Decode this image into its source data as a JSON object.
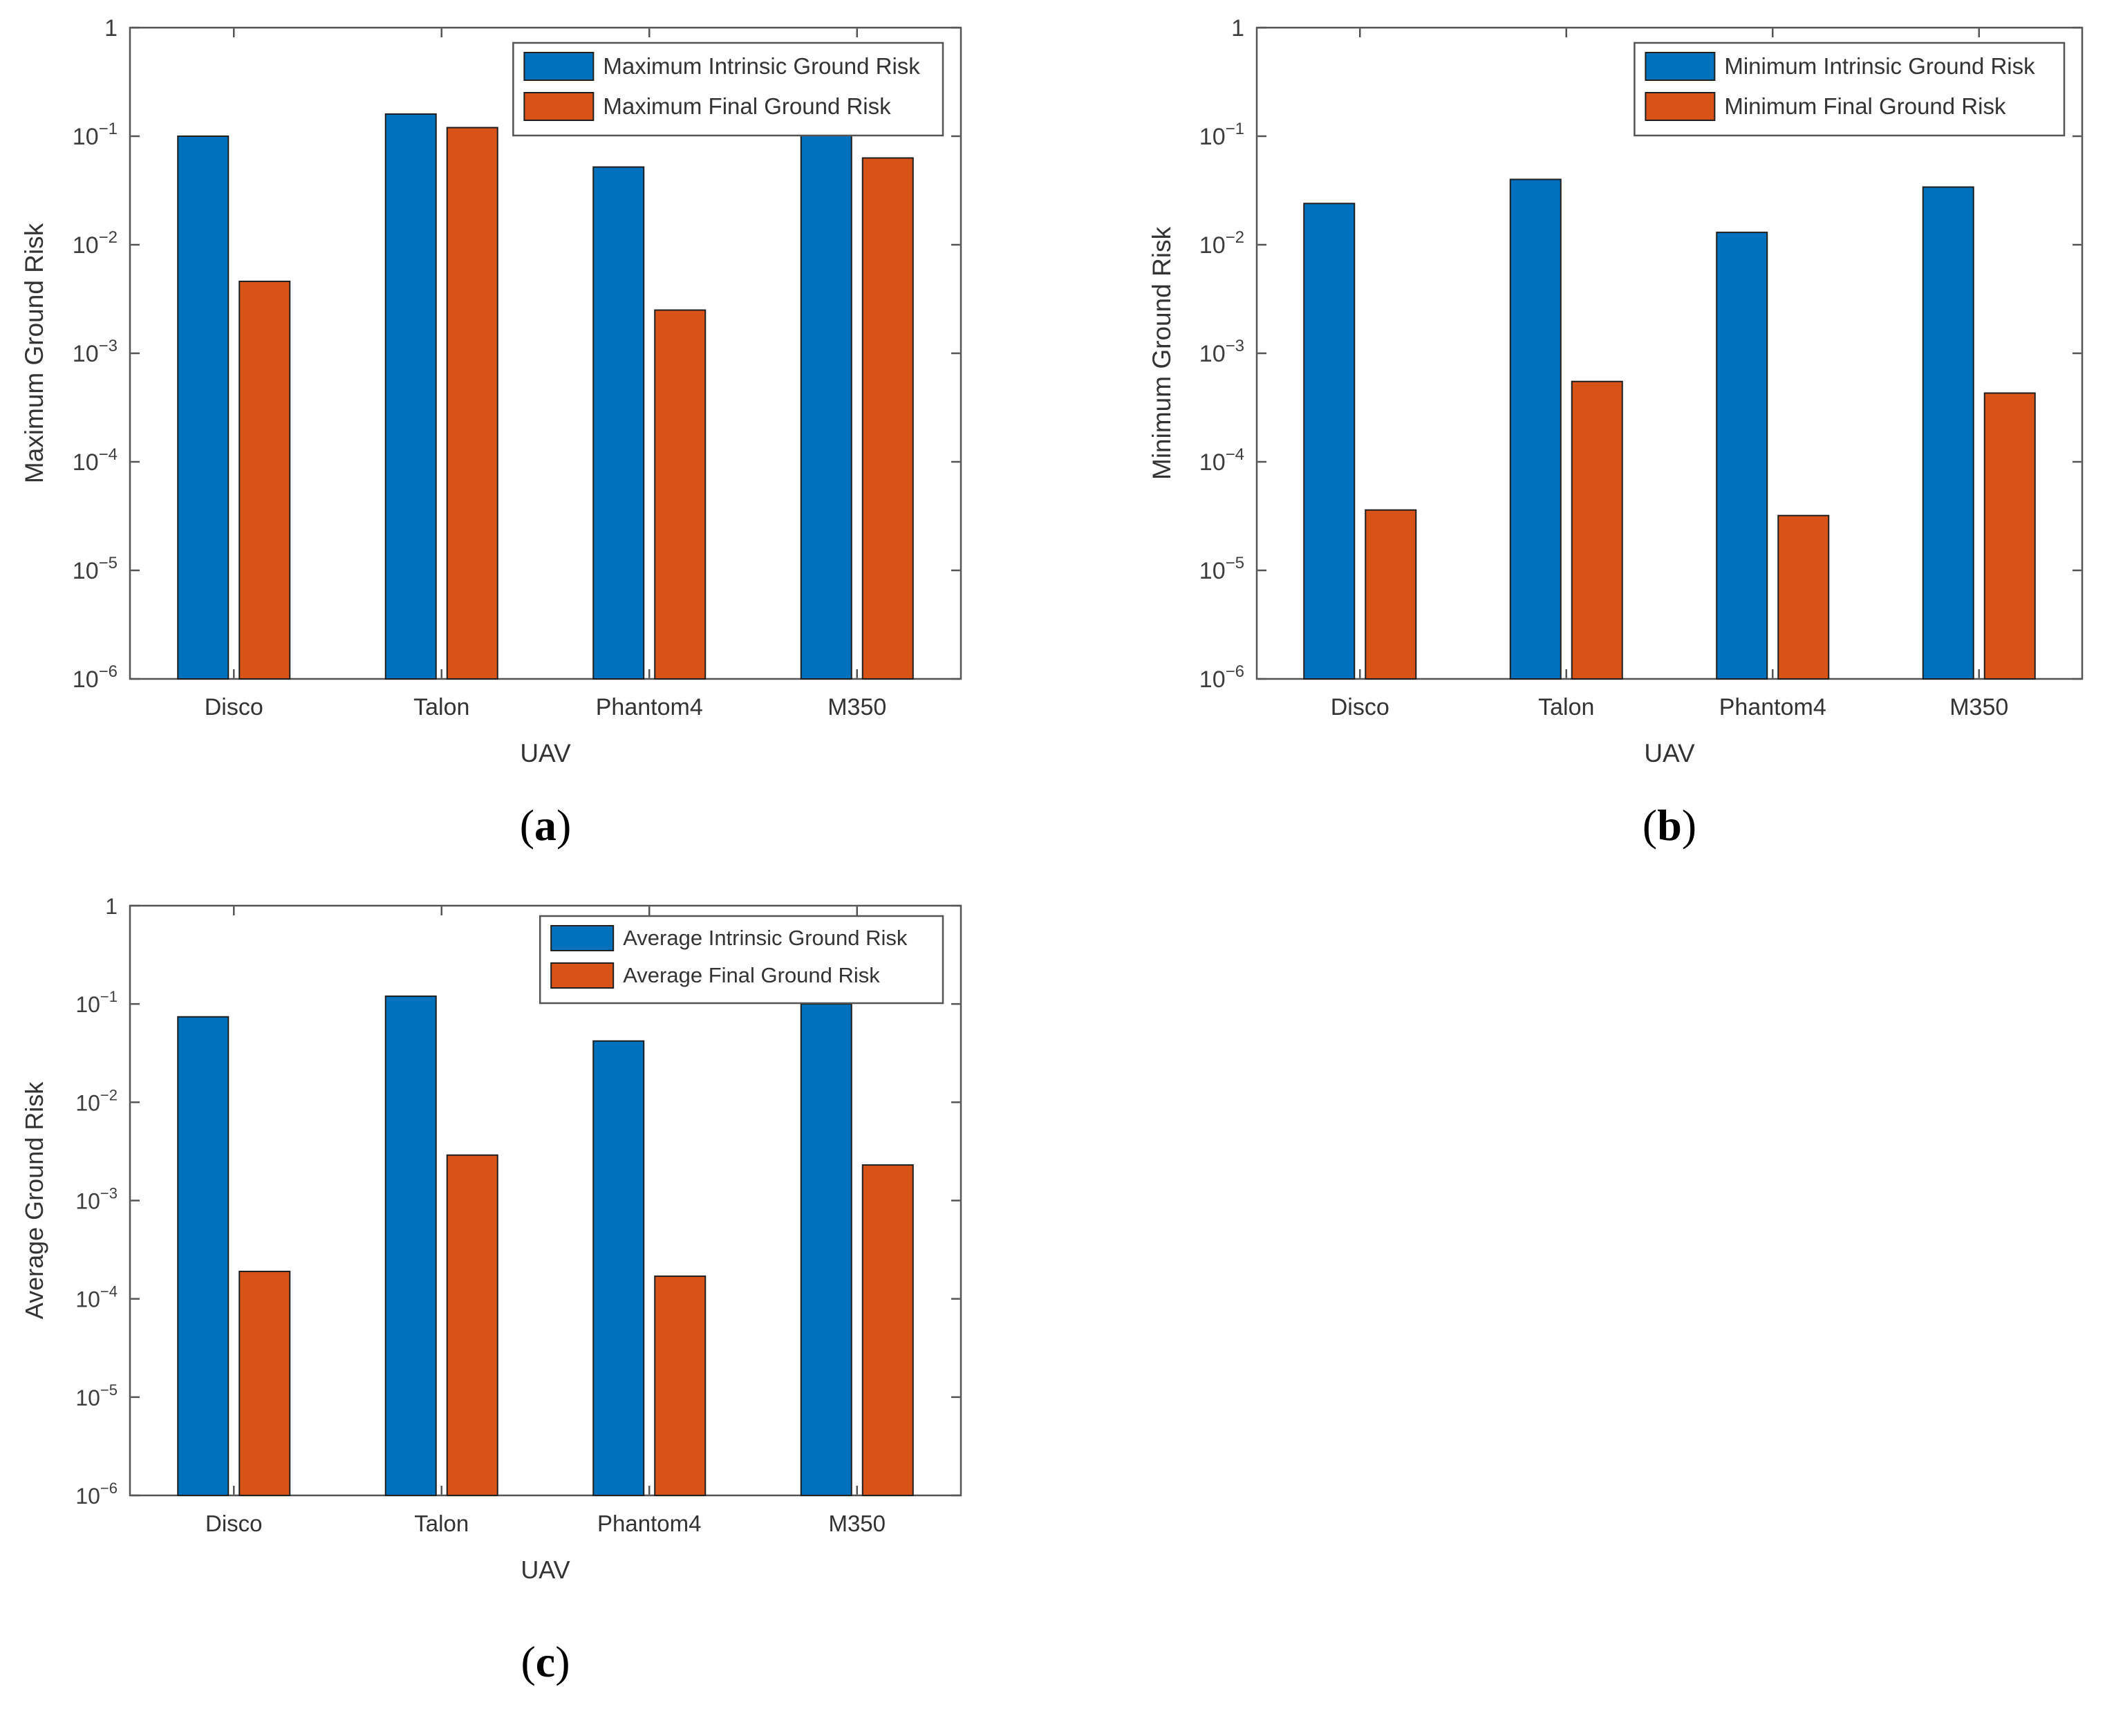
{
  "figure": {
    "background": "#ffffff",
    "frame_color": "#545454",
    "bar_edge_color": "#1f1f1f",
    "text_color": "#333333",
    "tick_label_color": "#3d3d3d"
  },
  "series_colors": {
    "intrinsic": "#0072BD",
    "final": "#D95319"
  },
  "chart_data": [
    {
      "type": "bar",
      "panel": "a",
      "caption": {
        "open": "(",
        "letter": "a",
        "close": ")"
      },
      "categories": [
        "Disco",
        "Talon",
        "Phantom4",
        "M350"
      ],
      "series": [
        {
          "name": "Maximum Intrinsic Ground Risk",
          "color": "#0072BD",
          "values": [
            0.1,
            0.16,
            0.052,
            0.13
          ]
        },
        {
          "name": "Maximum Final Ground Risk",
          "color": "#D95319",
          "values": [
            0.0046,
            0.12,
            0.0025,
            0.063
          ]
        }
      ],
      "xlabel": "UAV",
      "ylabel": "Maximum Ground Risk",
      "yscale": "log",
      "ylim": [
        1e-06,
        1
      ],
      "ytick_exponents": [
        0,
        -1,
        -2,
        -3,
        -4,
        -5,
        -6
      ],
      "grid": "off",
      "legend_position": "top-right-inside"
    },
    {
      "type": "bar",
      "panel": "b",
      "caption": {
        "open": "(",
        "letter": "b",
        "close": ")"
      },
      "categories": [
        "Disco",
        "Talon",
        "Phantom4",
        "M350"
      ],
      "series": [
        {
          "name": "Minimum Intrinsic Ground Risk",
          "color": "#0072BD",
          "values": [
            0.024,
            0.04,
            0.013,
            0.034
          ]
        },
        {
          "name": "Minimum Final Ground Risk",
          "color": "#D95319",
          "values": [
            3.6e-05,
            0.00055,
            3.2e-05,
            0.00043
          ]
        }
      ],
      "xlabel": "UAV",
      "ylabel": "Minimum Ground Risk",
      "yscale": "log",
      "ylim": [
        1e-06,
        1
      ],
      "ytick_exponents": [
        0,
        -1,
        -2,
        -3,
        -4,
        -5,
        -6
      ],
      "grid": "off",
      "legend_position": "top-right-inside"
    },
    {
      "type": "bar",
      "panel": "c",
      "caption": {
        "open": "(",
        "letter": "c",
        "close": ")"
      },
      "categories": [
        "Disco",
        "Talon",
        "Phantom4",
        "M350"
      ],
      "series": [
        {
          "name": "Average Intrinsic Ground Risk",
          "color": "#0072BD",
          "values": [
            0.074,
            0.12,
            0.042,
            0.1
          ]
        },
        {
          "name": "Average Final Ground Risk",
          "color": "#D95319",
          "values": [
            0.00019,
            0.0029,
            0.00017,
            0.0023
          ]
        }
      ],
      "xlabel": "UAV",
      "ylabel": "Average Ground Risk",
      "yscale": "log",
      "ylim": [
        1e-06,
        1
      ],
      "ytick_exponents": [
        0,
        -1,
        -2,
        -3,
        -4,
        -5,
        -6
      ],
      "grid": "off",
      "legend_position": "top-right-inside"
    }
  ]
}
